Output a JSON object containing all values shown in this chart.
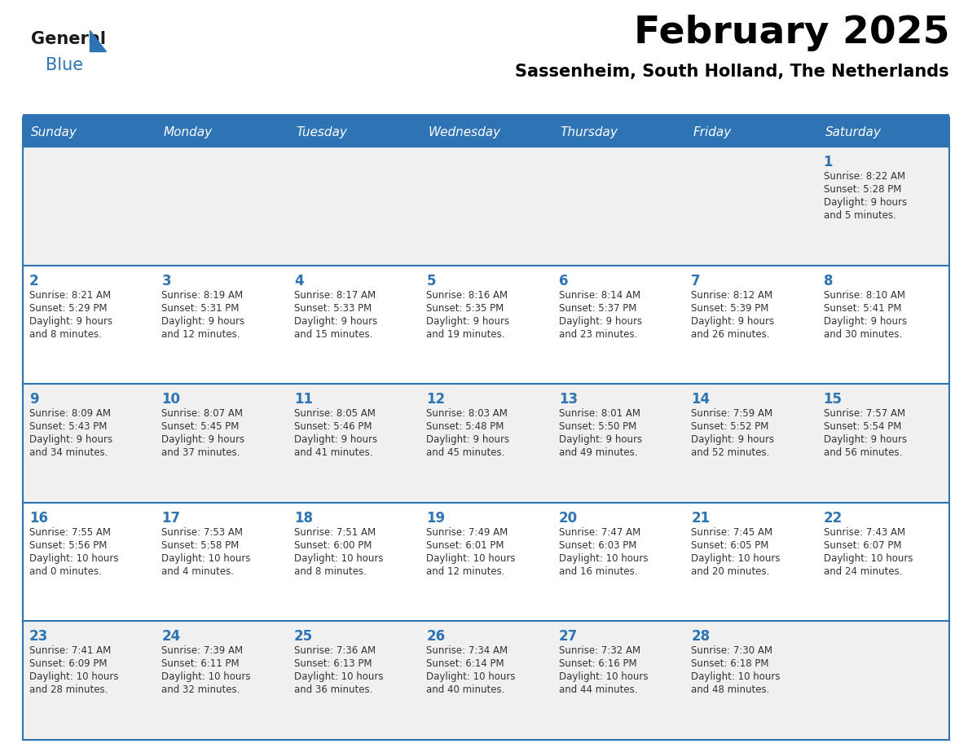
{
  "title": "February 2025",
  "subtitle": "Sassenheim, South Holland, The Netherlands",
  "header_bg": "#2E74B5",
  "header_text_color": "#FFFFFF",
  "day_names": [
    "Sunday",
    "Monday",
    "Tuesday",
    "Wednesday",
    "Thursday",
    "Friday",
    "Saturday"
  ],
  "odd_row_bg": "#F0F0F0",
  "even_row_bg": "#FFFFFF",
  "separator_color": "#2E74B5",
  "text_color": "#333333",
  "number_color": "#2E74B5",
  "logo_general_color": "#1A1A1A",
  "logo_blue_color": "#2E74B5",
  "days": [
    {
      "date": 1,
      "col": 6,
      "row": 0,
      "sunrise": "8:22 AM",
      "sunset": "5:28 PM",
      "daylight_hours": 9,
      "daylight_minutes": 5
    },
    {
      "date": 2,
      "col": 0,
      "row": 1,
      "sunrise": "8:21 AM",
      "sunset": "5:29 PM",
      "daylight_hours": 9,
      "daylight_minutes": 8
    },
    {
      "date": 3,
      "col": 1,
      "row": 1,
      "sunrise": "8:19 AM",
      "sunset": "5:31 PM",
      "daylight_hours": 9,
      "daylight_minutes": 12
    },
    {
      "date": 4,
      "col": 2,
      "row": 1,
      "sunrise": "8:17 AM",
      "sunset": "5:33 PM",
      "daylight_hours": 9,
      "daylight_minutes": 15
    },
    {
      "date": 5,
      "col": 3,
      "row": 1,
      "sunrise": "8:16 AM",
      "sunset": "5:35 PM",
      "daylight_hours": 9,
      "daylight_minutes": 19
    },
    {
      "date": 6,
      "col": 4,
      "row": 1,
      "sunrise": "8:14 AM",
      "sunset": "5:37 PM",
      "daylight_hours": 9,
      "daylight_minutes": 23
    },
    {
      "date": 7,
      "col": 5,
      "row": 1,
      "sunrise": "8:12 AM",
      "sunset": "5:39 PM",
      "daylight_hours": 9,
      "daylight_minutes": 26
    },
    {
      "date": 8,
      "col": 6,
      "row": 1,
      "sunrise": "8:10 AM",
      "sunset": "5:41 PM",
      "daylight_hours": 9,
      "daylight_minutes": 30
    },
    {
      "date": 9,
      "col": 0,
      "row": 2,
      "sunrise": "8:09 AM",
      "sunset": "5:43 PM",
      "daylight_hours": 9,
      "daylight_minutes": 34
    },
    {
      "date": 10,
      "col": 1,
      "row": 2,
      "sunrise": "8:07 AM",
      "sunset": "5:45 PM",
      "daylight_hours": 9,
      "daylight_minutes": 37
    },
    {
      "date": 11,
      "col": 2,
      "row": 2,
      "sunrise": "8:05 AM",
      "sunset": "5:46 PM",
      "daylight_hours": 9,
      "daylight_minutes": 41
    },
    {
      "date": 12,
      "col": 3,
      "row": 2,
      "sunrise": "8:03 AM",
      "sunset": "5:48 PM",
      "daylight_hours": 9,
      "daylight_minutes": 45
    },
    {
      "date": 13,
      "col": 4,
      "row": 2,
      "sunrise": "8:01 AM",
      "sunset": "5:50 PM",
      "daylight_hours": 9,
      "daylight_minutes": 49
    },
    {
      "date": 14,
      "col": 5,
      "row": 2,
      "sunrise": "7:59 AM",
      "sunset": "5:52 PM",
      "daylight_hours": 9,
      "daylight_minutes": 52
    },
    {
      "date": 15,
      "col": 6,
      "row": 2,
      "sunrise": "7:57 AM",
      "sunset": "5:54 PM",
      "daylight_hours": 9,
      "daylight_minutes": 56
    },
    {
      "date": 16,
      "col": 0,
      "row": 3,
      "sunrise": "7:55 AM",
      "sunset": "5:56 PM",
      "daylight_hours": 10,
      "daylight_minutes": 0
    },
    {
      "date": 17,
      "col": 1,
      "row": 3,
      "sunrise": "7:53 AM",
      "sunset": "5:58 PM",
      "daylight_hours": 10,
      "daylight_minutes": 4
    },
    {
      "date": 18,
      "col": 2,
      "row": 3,
      "sunrise": "7:51 AM",
      "sunset": "6:00 PM",
      "daylight_hours": 10,
      "daylight_minutes": 8
    },
    {
      "date": 19,
      "col": 3,
      "row": 3,
      "sunrise": "7:49 AM",
      "sunset": "6:01 PM",
      "daylight_hours": 10,
      "daylight_minutes": 12
    },
    {
      "date": 20,
      "col": 4,
      "row": 3,
      "sunrise": "7:47 AM",
      "sunset": "6:03 PM",
      "daylight_hours": 10,
      "daylight_minutes": 16
    },
    {
      "date": 21,
      "col": 5,
      "row": 3,
      "sunrise": "7:45 AM",
      "sunset": "6:05 PM",
      "daylight_hours": 10,
      "daylight_minutes": 20
    },
    {
      "date": 22,
      "col": 6,
      "row": 3,
      "sunrise": "7:43 AM",
      "sunset": "6:07 PM",
      "daylight_hours": 10,
      "daylight_minutes": 24
    },
    {
      "date": 23,
      "col": 0,
      "row": 4,
      "sunrise": "7:41 AM",
      "sunset": "6:09 PM",
      "daylight_hours": 10,
      "daylight_minutes": 28
    },
    {
      "date": 24,
      "col": 1,
      "row": 4,
      "sunrise": "7:39 AM",
      "sunset": "6:11 PM",
      "daylight_hours": 10,
      "daylight_minutes": 32
    },
    {
      "date": 25,
      "col": 2,
      "row": 4,
      "sunrise": "7:36 AM",
      "sunset": "6:13 PM",
      "daylight_hours": 10,
      "daylight_minutes": 36
    },
    {
      "date": 26,
      "col": 3,
      "row": 4,
      "sunrise": "7:34 AM",
      "sunset": "6:14 PM",
      "daylight_hours": 10,
      "daylight_minutes": 40
    },
    {
      "date": 27,
      "col": 4,
      "row": 4,
      "sunrise": "7:32 AM",
      "sunset": "6:16 PM",
      "daylight_hours": 10,
      "daylight_minutes": 44
    },
    {
      "date": 28,
      "col": 5,
      "row": 4,
      "sunrise": "7:30 AM",
      "sunset": "6:18 PM",
      "daylight_hours": 10,
      "daylight_minutes": 48
    }
  ]
}
